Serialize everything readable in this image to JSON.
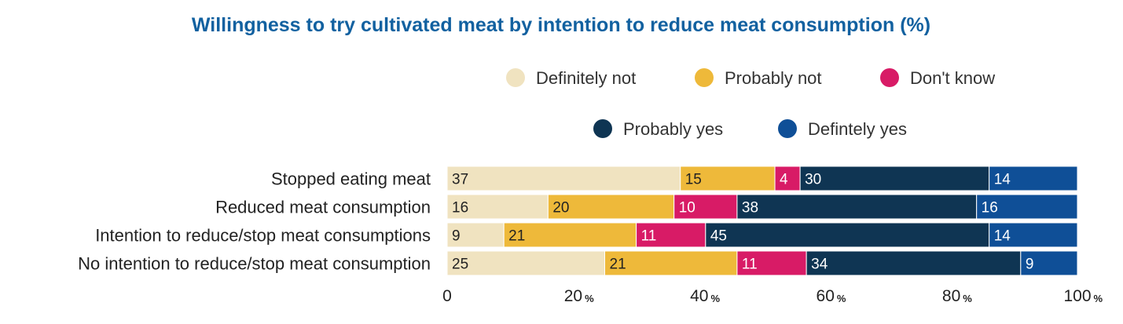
{
  "chart_data": {
    "type": "bar",
    "orientation": "horizontal",
    "stacked": true,
    "title": "Willingness to try cultivated meat by intention to reduce meat consumption (%)",
    "categories": [
      "Stopped eating meat",
      "Reduced meat consumption",
      "Intention to reduce/stop meat consumptions",
      "No intention to reduce/stop meat consumption"
    ],
    "series": [
      {
        "name": "Definitely not",
        "color": "#f0e3c0",
        "label_color": "#222222",
        "values": [
          37,
          16,
          9,
          25
        ]
      },
      {
        "name": "Probably not",
        "color": "#eeb93a",
        "label_color": "#222222",
        "values": [
          15,
          20,
          21,
          21
        ]
      },
      {
        "name": "Don't know",
        "color": "#d81b66",
        "label_color": "#ffffff",
        "values": [
          4,
          10,
          11,
          11
        ]
      },
      {
        "name": "Probably yes",
        "color": "#0f3553",
        "label_color": "#ffffff",
        "values": [
          30,
          38,
          45,
          34
        ]
      },
      {
        "name": "Defintely yes",
        "color": "#0f4f97",
        "label_color": "#ffffff",
        "values": [
          14,
          16,
          14,
          9
        ]
      }
    ],
    "xlim": [
      0,
      100
    ],
    "xticks": [
      0,
      20,
      40,
      60,
      80,
      100
    ],
    "xtick_suffix": "%",
    "legend_position": "top"
  },
  "colors": {
    "title": "#1261a0"
  }
}
